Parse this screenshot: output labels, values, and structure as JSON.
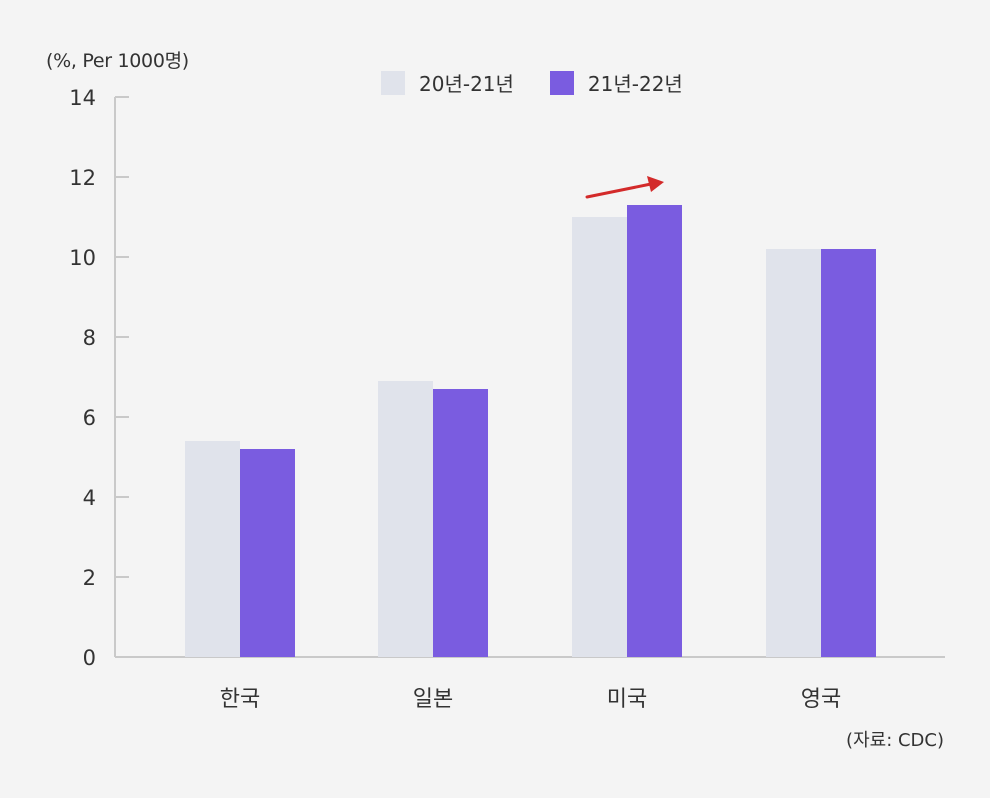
{
  "chart_data": {
    "type": "bar",
    "unit_label": "(%, Per 1000명)",
    "source": "(자료: CDC)",
    "categories": [
      "한국",
      "일본",
      "미국",
      "영국"
    ],
    "series": [
      {
        "name": "20년-21년",
        "color": "#e0e3eb",
        "values": [
          5.4,
          6.9,
          11.0,
          10.2
        ]
      },
      {
        "name": "21년-22년",
        "color": "#7a5ce0",
        "values": [
          5.2,
          6.7,
          11.3,
          10.2
        ]
      }
    ],
    "ylim": [
      0,
      14
    ],
    "yticks": [
      0,
      2,
      4,
      6,
      8,
      10,
      12,
      14
    ],
    "grid": false,
    "legend_position": "top-center",
    "annotations": [
      {
        "type": "arrow",
        "category": "미국",
        "color": "#d32a2a"
      }
    ]
  }
}
